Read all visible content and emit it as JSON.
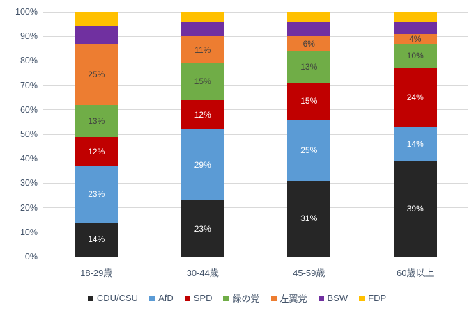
{
  "chart_data": {
    "type": "bar",
    "variant": "stacked-percent",
    "title": "",
    "xlabel": "",
    "ylabel": "",
    "categories": [
      "18-29歳",
      "30-44歳",
      "45-59歳",
      "60歳以上"
    ],
    "series": [
      {
        "name": "CDU/CSU",
        "color": "#262626",
        "values": [
          14,
          23,
          31,
          39
        ],
        "show_labels": true,
        "label_color": "#FFFFFF"
      },
      {
        "name": "AfD",
        "color": "#5B9BD5",
        "values": [
          23,
          29,
          25,
          14
        ],
        "show_labels": true,
        "label_color": "#FFFFFF"
      },
      {
        "name": "SPD",
        "color": "#C00000",
        "values": [
          12,
          12,
          15,
          24
        ],
        "show_labels": true,
        "label_color": "#FFFFFF"
      },
      {
        "name": "緑の党",
        "color": "#70AD47",
        "values": [
          13,
          15,
          13,
          10
        ],
        "show_labels": true,
        "label_color": "#404040"
      },
      {
        "name": "左翼党",
        "color": "#ED7D31",
        "values": [
          25,
          11,
          6,
          4
        ],
        "show_labels": true,
        "label_color": "#404040"
      },
      {
        "name": "BSW",
        "color": "#7030A0",
        "values": [
          7,
          6,
          6,
          5
        ],
        "show_labels": false,
        "label_color": "#FFFFFF"
      },
      {
        "name": "FDP",
        "color": "#FFC000",
        "values": [
          6,
          4,
          4,
          4
        ],
        "show_labels": false,
        "label_color": "#404040"
      }
    ],
    "label_suffix": "%",
    "y_axis": {
      "min": 0,
      "max": 100,
      "step": 10,
      "ticks": [
        "0%",
        "10%",
        "20%",
        "30%",
        "40%",
        "50%",
        "60%",
        "70%",
        "80%",
        "90%",
        "100%"
      ]
    },
    "grid": true,
    "legend_position": "bottom"
  },
  "style": {
    "grid_color": "#D9D9D9",
    "axis_text_color": "#44546A",
    "background": "#FFFFFF"
  }
}
